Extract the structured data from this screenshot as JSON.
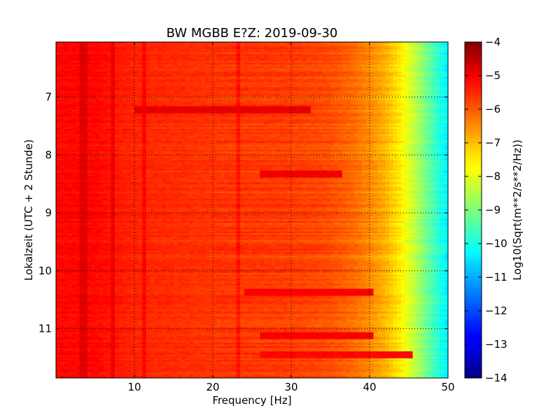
{
  "chart_data": {
    "type": "heatmap",
    "title": "BW MGBB E?Z: 2019-09-30",
    "xlabel": "Frequency [Hz]",
    "ylabel": "Lokalzeit (UTC + 2 Stunde)",
    "xlim": [
      0,
      50
    ],
    "ylim": [
      11.85,
      6.05
    ],
    "y_inverted": true,
    "x_ticks": [
      10,
      20,
      30,
      40,
      50
    ],
    "x_tick_labels": [
      "10",
      "20",
      "30",
      "40",
      "50"
    ],
    "y_ticks": [
      7,
      8,
      9,
      10,
      11
    ],
    "y_tick_labels": [
      "7",
      "8",
      "9",
      "10",
      "11"
    ],
    "grid": true,
    "colormap": "jet",
    "colorbar": {
      "label": "Log10(Sqrt(m**2/s**2/Hz))",
      "range": [
        -14,
        -4
      ],
      "ticks": [
        -4,
        -5,
        -6,
        -7,
        -8,
        -9,
        -10,
        -11,
        -12,
        -13,
        -14
      ],
      "tick_labels": [
        "−4",
        "−5",
        "−6",
        "−7",
        "−8",
        "−9",
        "−10",
        "−11",
        "−12",
        "−13",
        "−14"
      ]
    },
    "frequency_profile": {
      "frequency_hz": [
        0,
        5,
        8,
        10,
        20,
        30,
        35,
        38,
        40,
        42,
        44,
        46,
        48,
        50
      ],
      "log10_amplitude": [
        -5.3,
        -5.3,
        -5.5,
        -5.6,
        -5.75,
        -5.85,
        -6.0,
        -6.3,
        -6.6,
        -7.0,
        -7.6,
        -8.5,
        -9.5,
        -10.4
      ]
    },
    "spectral_lines_hz": [
      3.5,
      7.2,
      11.1,
      23.2
    ],
    "strong_bands": [
      {
        "time": 7.2,
        "freq_range": [
          10,
          32
        ],
        "log10_amplitude": -5.0
      },
      {
        "time": 8.3,
        "freq_range": [
          26,
          36
        ],
        "log10_amplitude": -5.1
      },
      {
        "time": 10.35,
        "freq_range": [
          24,
          40
        ],
        "log10_amplitude": -5.2
      },
      {
        "time": 11.1,
        "freq_range": [
          26,
          40
        ],
        "log10_amplitude": -5.2
      },
      {
        "time": 11.45,
        "freq_range": [
          26,
          45
        ],
        "log10_amplitude": -5.3
      }
    ],
    "time_resolution_hours": 0.03,
    "frequency_resolution_hz": 0.5
  }
}
